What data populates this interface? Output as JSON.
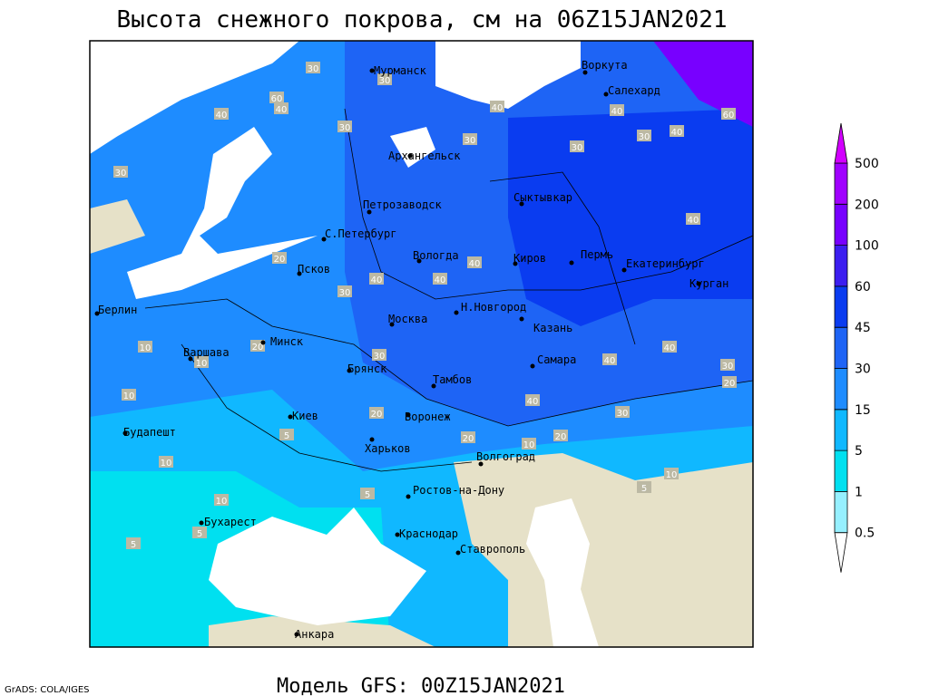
{
  "title": "Высота снежного покрова, см на 06Z15JAN2021",
  "subtitle": "Модель GFS: 00Z15JAN2021",
  "credit": "GrADS: COLA/IGES",
  "cities": [
    "Мурманск",
    "Воркута",
    "Салехард",
    "Архангельск",
    "Петрозаводск",
    "Сыктывкар",
    "С.Петербург",
    "Вологда",
    "Киров",
    "Пермь",
    "Екатеринбург",
    "Курган",
    "Псков",
    "Н.Новгород",
    "Казань",
    "Москва",
    "Берлин",
    "Варшава",
    "Минск",
    "Самара",
    "Брянск",
    "Тамбов",
    "Киев",
    "Воронеж",
    "Будапешт",
    "Харьков",
    "Волгоград",
    "Ростов-на-Дону",
    "Бухарест",
    "Краснодар",
    "Ставрополь",
    "Анкара"
  ],
  "contour_labels": [
    30,
    30,
    60,
    40,
    40,
    30,
    30,
    40,
    30,
    40,
    30,
    60,
    30,
    40,
    20,
    30,
    40,
    40,
    40,
    40,
    30,
    10,
    20,
    10,
    10,
    40,
    30,
    40,
    40,
    30,
    20,
    20,
    5,
    20,
    20,
    10,
    10,
    5,
    10,
    5,
    5,
    10,
    5
  ],
  "legend": {
    "levels": [
      0.5,
      1,
      5,
      15,
      30,
      45,
      60,
      100,
      200,
      500
    ],
    "colors": [
      "#ffffff",
      "#96f0ff",
      "#00e0f0",
      "#10b8ff",
      "#1e8cff",
      "#1e64f5",
      "#0a3cf0",
      "#3c1ef0",
      "#7800ff",
      "#a000ff",
      "#d200ff"
    ]
  }
}
